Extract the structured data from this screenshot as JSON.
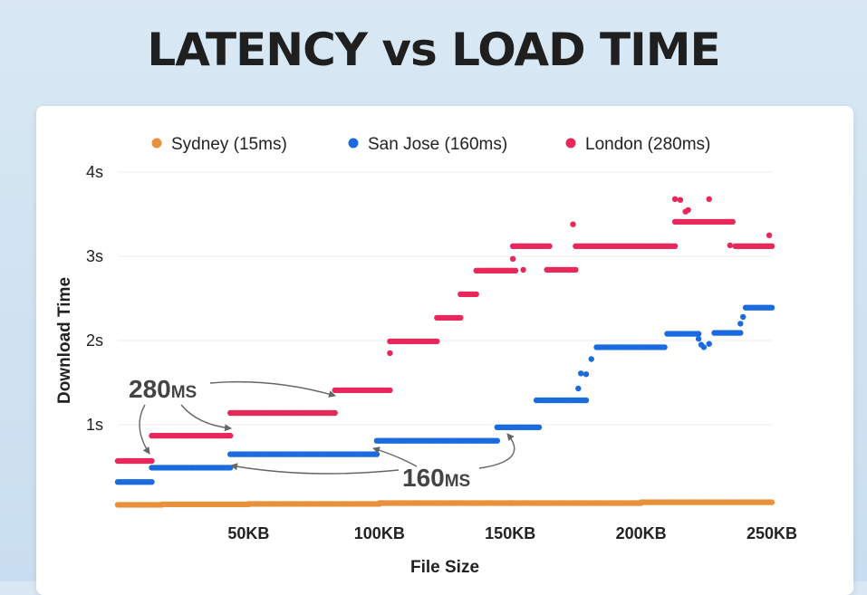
{
  "title": "LATENCY vs LOAD TIME",
  "chart_data": {
    "type": "scatter",
    "title": "LATENCY vs LOAD TIME",
    "xlabel": "File Size",
    "ylabel": "Download Time",
    "xlim": [
      0,
      250
    ],
    "ylim": [
      0,
      4
    ],
    "x_ticks": [
      {
        "value": 50,
        "label": "50KB"
      },
      {
        "value": 100,
        "label": "100KB"
      },
      {
        "value": 150,
        "label": "150KB"
      },
      {
        "value": 200,
        "label": "200KB"
      },
      {
        "value": 250,
        "label": "250KB"
      }
    ],
    "y_ticks": [
      {
        "value": 1,
        "label": "1s"
      },
      {
        "value": 2,
        "label": "2s"
      },
      {
        "value": 3,
        "label": "3s"
      },
      {
        "value": 4,
        "label": "4s"
      }
    ],
    "grid": true,
    "legend_position": "top",
    "series": [
      {
        "name": "Sydney (15ms)",
        "color": "#e8903a",
        "segments": [
          [
            0,
            17,
            0.05
          ],
          [
            17,
            50,
            0.055
          ],
          [
            50,
            100,
            0.06
          ],
          [
            100,
            150,
            0.07
          ],
          [
            150,
            200,
            0.07
          ],
          [
            200,
            250,
            0.08
          ]
        ]
      },
      {
        "name": "San Jose (160ms)",
        "color": "#1a6be0",
        "segments": [
          [
            0,
            13,
            0.32
          ],
          [
            13,
            43,
            0.49
          ],
          [
            43,
            99,
            0.65
          ],
          [
            99,
            145,
            0.81
          ],
          [
            145,
            161,
            0.97
          ],
          [
            160,
            179,
            1.29
          ],
          [
            183,
            209,
            1.92
          ],
          [
            210,
            222,
            2.08
          ],
          [
            228,
            238,
            2.09
          ],
          [
            240,
            250,
            2.39
          ]
        ],
        "points": [
          [
            176,
            1.43
          ],
          [
            177,
            1.61
          ],
          [
            179,
            1.6
          ],
          [
            181,
            1.78
          ],
          [
            222,
            2.02
          ],
          [
            223,
            1.95
          ],
          [
            224,
            1.92
          ],
          [
            226,
            1.96
          ],
          [
            238,
            2.2
          ],
          [
            239,
            2.28
          ]
        ]
      },
      {
        "name": "London (280ms)",
        "color": "#e8285a",
        "segments": [
          [
            0,
            13,
            0.57
          ],
          [
            13,
            43,
            0.87
          ],
          [
            43,
            83,
            1.14
          ],
          [
            83,
            104,
            1.41
          ],
          [
            104,
            122,
            1.99
          ],
          [
            122,
            131,
            2.27
          ],
          [
            131,
            137,
            2.55
          ],
          [
            137,
            152,
            2.83
          ],
          [
            151,
            165,
            3.12
          ],
          [
            164,
            175,
            2.84
          ],
          [
            175,
            213,
            3.12
          ],
          [
            213,
            235,
            3.41
          ],
          [
            236,
            250,
            3.12
          ]
        ],
        "points": [
          [
            104,
            1.85
          ],
          [
            151,
            2.97
          ],
          [
            155,
            2.84
          ],
          [
            174,
            3.38
          ],
          [
            213,
            3.68
          ],
          [
            215,
            3.67
          ],
          [
            217,
            3.53
          ],
          [
            218,
            3.55
          ],
          [
            226,
            3.68
          ],
          [
            234,
            3.13
          ],
          [
            249,
            3.25
          ]
        ]
      }
    ],
    "annotations": [
      {
        "label": "280ms",
        "text_main": "280",
        "text_suffix": "MS",
        "color": "#444444"
      },
      {
        "label": "160ms",
        "text_main": "160",
        "text_suffix": "MS",
        "color": "#444444"
      }
    ]
  }
}
